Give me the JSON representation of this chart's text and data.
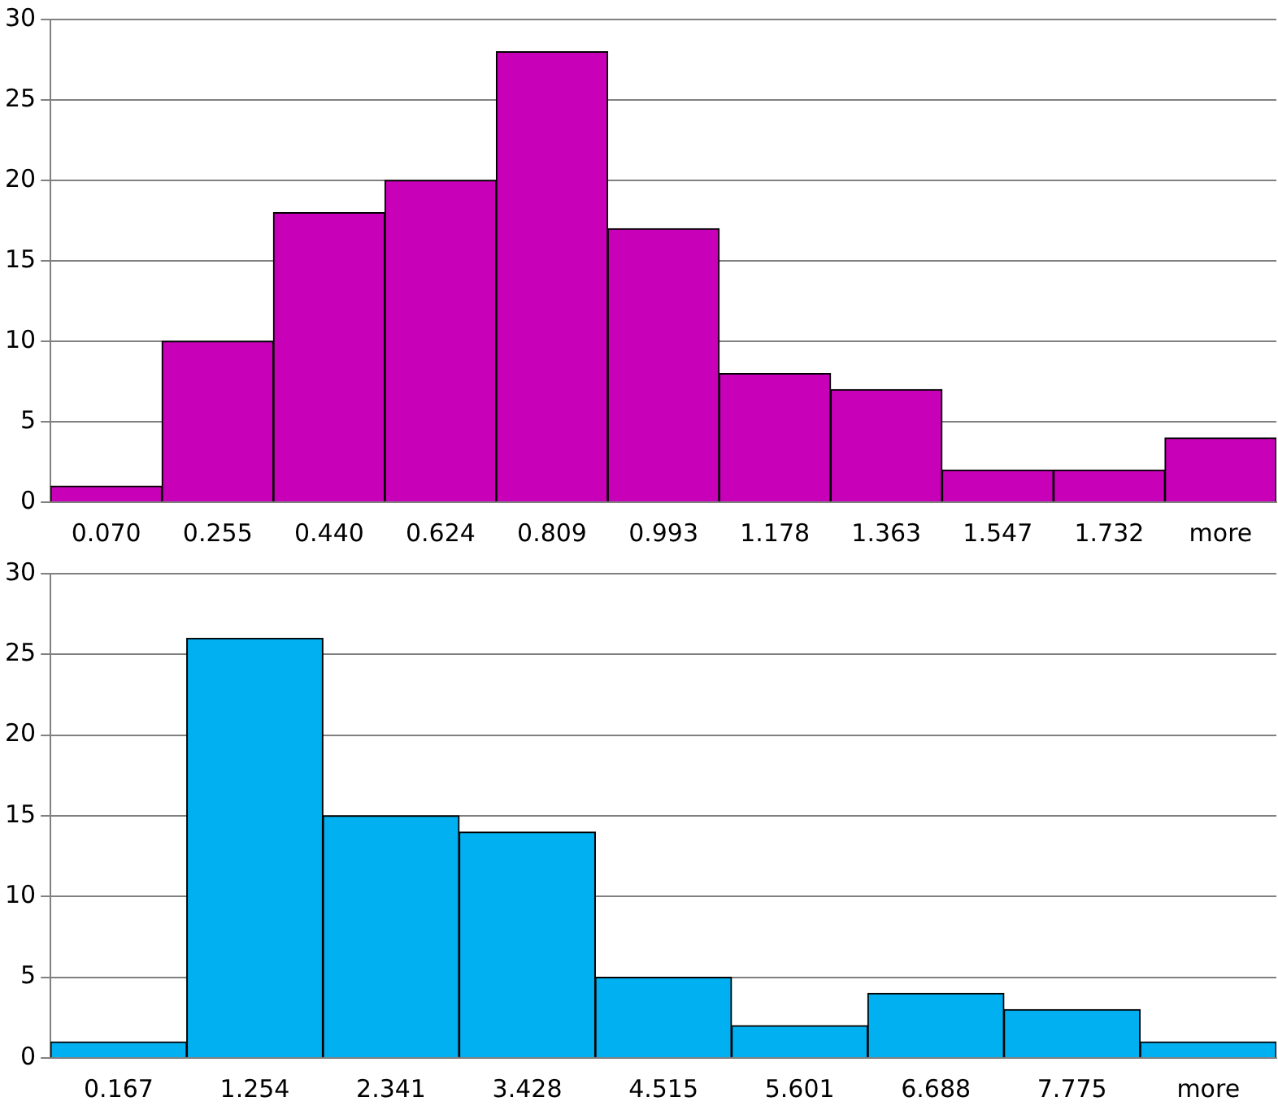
{
  "chart_data": [
    {
      "type": "bar",
      "categories": [
        "0.070",
        "0.255",
        "0.440",
        "0.624",
        "0.809",
        "0.993",
        "1.178",
        "1.363",
        "1.547",
        "1.732",
        "more"
      ],
      "values": [
        1,
        10,
        18,
        20,
        28,
        17,
        8,
        7,
        2,
        2,
        4
      ],
      "color": "#c800b8",
      "ylim": [
        0,
        30
      ],
      "yticks": [
        0,
        5,
        10,
        15,
        20,
        25,
        30
      ],
      "grid": "y",
      "legend": false
    },
    {
      "type": "bar",
      "categories": [
        "0.167",
        "1.254",
        "2.341",
        "3.428",
        "4.515",
        "5.601",
        "6.688",
        "7.775",
        "more"
      ],
      "values": [
        1,
        26,
        15,
        14,
        5,
        2,
        4,
        3,
        1
      ],
      "color": "#00b0f0",
      "ylim": [
        0,
        30
      ],
      "yticks": [
        0,
        5,
        10,
        15,
        20,
        25,
        30
      ],
      "grid": "y",
      "legend": false
    }
  ]
}
